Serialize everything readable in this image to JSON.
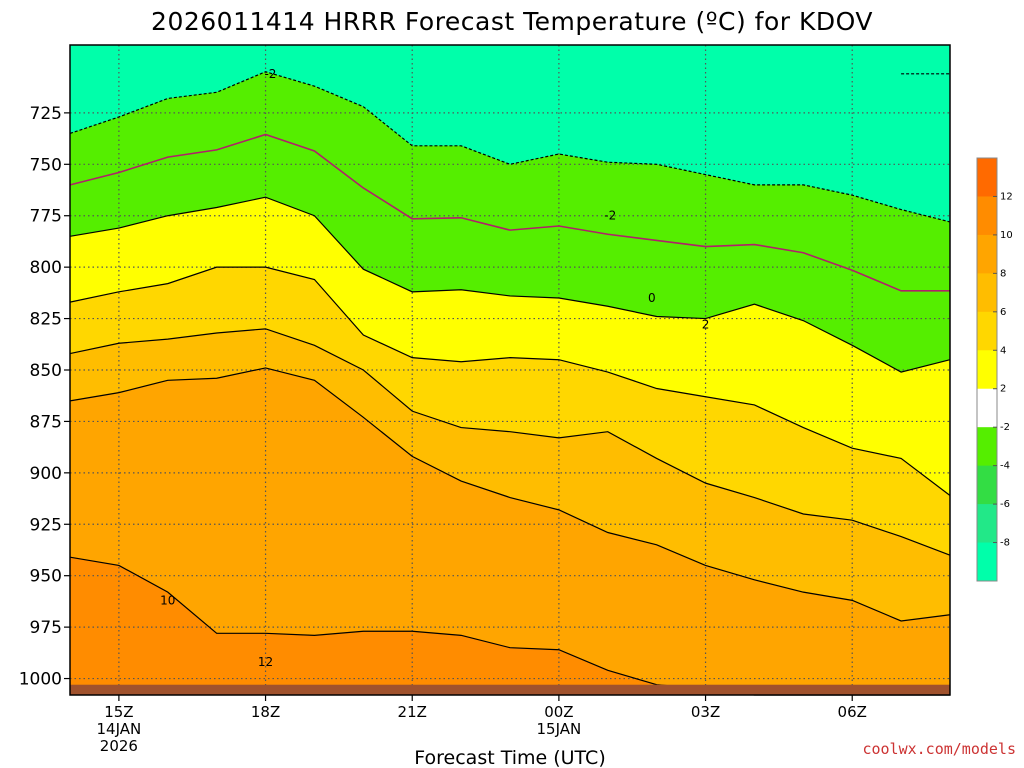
{
  "chart_data": {
    "type": "heatmap",
    "title": "2026011414 HRRR Forecast Temperature (ºC) for KDOV",
    "xlabel": "Forecast Time (UTC)",
    "ylabel": "",
    "credit": "coolwx.com/models",
    "y_axis": {
      "quantity": "pressure (hPa)",
      "reversed": true,
      "range": [
        1008,
        692
      ],
      "ticks": [
        "725",
        "750",
        "775",
        "800",
        "825",
        "850",
        "875",
        "900",
        "925",
        "950",
        "975",
        "1000"
      ]
    },
    "x_axis": {
      "range": [
        -1,
        17
      ],
      "ticks": [
        {
          "x": 0,
          "line1": "15Z",
          "line2": "14JAN",
          "line3": "2026"
        },
        {
          "x": 3,
          "line1": "18Z",
          "line2": "",
          "line3": ""
        },
        {
          "x": 6,
          "line1": "21Z",
          "line2": "",
          "line3": ""
        },
        {
          "x": 9,
          "line1": "00Z",
          "line2": "15JAN",
          "line3": ""
        },
        {
          "x": 12,
          "line1": "03Z",
          "line2": "",
          "line3": ""
        },
        {
          "x": 15,
          "line1": "06Z",
          "line2": "",
          "line3": ""
        }
      ]
    },
    "grid": true,
    "colorbar": {
      "ticks": [
        "12",
        "10",
        "8",
        "6",
        "4",
        "2",
        "-2",
        "-4",
        "-6",
        "-8"
      ],
      "bins": [
        {
          "range": [
            12,
            14
          ],
          "color": "#ff6a00"
        },
        {
          "range": [
            10,
            12
          ],
          "color": "#ff8c00"
        },
        {
          "range": [
            8,
            10
          ],
          "color": "#ffa500"
        },
        {
          "range": [
            6,
            8
          ],
          "color": "#ffbd00"
        },
        {
          "range": [
            4,
            6
          ],
          "color": "#ffd700"
        },
        {
          "range": [
            2,
            4
          ],
          "color": "#ffff00"
        },
        {
          "range": [
            -2,
            2
          ],
          "color": "#ffffff"
        },
        {
          "range": [
            -4,
            -2
          ],
          "color": "#55ee00"
        },
        {
          "range": [
            -6,
            -4
          ],
          "color": "#33dd44"
        },
        {
          "range": [
            -8,
            -6
          ],
          "color": "#22e888"
        },
        {
          "range": [
            -10,
            -8
          ],
          "color": "#00ffaa"
        }
      ]
    },
    "contour_labels": [
      {
        "text": "-2",
        "x": 3.1,
        "p": 706
      },
      {
        "text": "-2",
        "x": 10.05,
        "p": 775
      },
      {
        "text": "0",
        "x": 10.9,
        "p": 815
      },
      {
        "text": "2",
        "x": 12.0,
        "p": 828
      },
      {
        "text": "10",
        "x": 1.0,
        "p": 962
      },
      {
        "text": "12",
        "x": 3.0,
        "p": 992
      }
    ],
    "x": [
      -1,
      0,
      1,
      2,
      3,
      4,
      5,
      6,
      7,
      8,
      9,
      10,
      11,
      12,
      13,
      14,
      15,
      16,
      17
    ],
    "contours": [
      {
        "level": -4,
        "fill": "#00ffaa",
        "p": [
          null,
          null,
          null,
          null,
          null,
          null,
          null,
          null,
          null,
          null,
          null,
          null,
          null,
          null,
          null,
          null,
          null,
          706,
          706
        ],
        "dash": true
      },
      {
        "level": -2,
        "fill": "#55ee00",
        "p": [
          735,
          727,
          718,
          715,
          705,
          712,
          722,
          741,
          741,
          750,
          745,
          749,
          750,
          755,
          760,
          760,
          765,
          772,
          778
        ],
        "dash": true
      },
      {
        "level": 2,
        "fill": "#ffff00",
        "p": [
          785,
          781,
          775,
          771,
          766,
          775,
          801,
          812,
          811,
          814,
          815,
          819,
          824,
          825,
          818,
          826,
          838,
          851,
          845
        ]
      },
      {
        "level": 4,
        "fill": "#ffd700",
        "p": [
          817,
          812,
          808,
          800,
          800,
          806,
          833,
          844,
          846,
          844,
          845,
          851,
          859,
          863,
          867,
          878,
          888,
          893,
          911
        ]
      },
      {
        "level": 6,
        "fill": "#ffbd00",
        "p": [
          842,
          837,
          835,
          832,
          830,
          838,
          850,
          870,
          878,
          880,
          883,
          880,
          893,
          905,
          912,
          920,
          923,
          931,
          940
        ]
      },
      {
        "level": 8,
        "fill": "#ffa500",
        "p": [
          865,
          861,
          855,
          854,
          849,
          855,
          873,
          892,
          904,
          912,
          918,
          929,
          935,
          945,
          952,
          958,
          962,
          972,
          969
        ]
      },
      {
        "level": 10,
        "fill": "#ff8c00",
        "p": [
          941,
          945,
          958,
          978,
          978,
          979,
          977,
          977,
          979,
          985,
          986,
          996,
          1003,
          1005,
          1008,
          1008,
          1008,
          1008,
          1008
        ]
      }
    ],
    "ground_p": 1003
  }
}
